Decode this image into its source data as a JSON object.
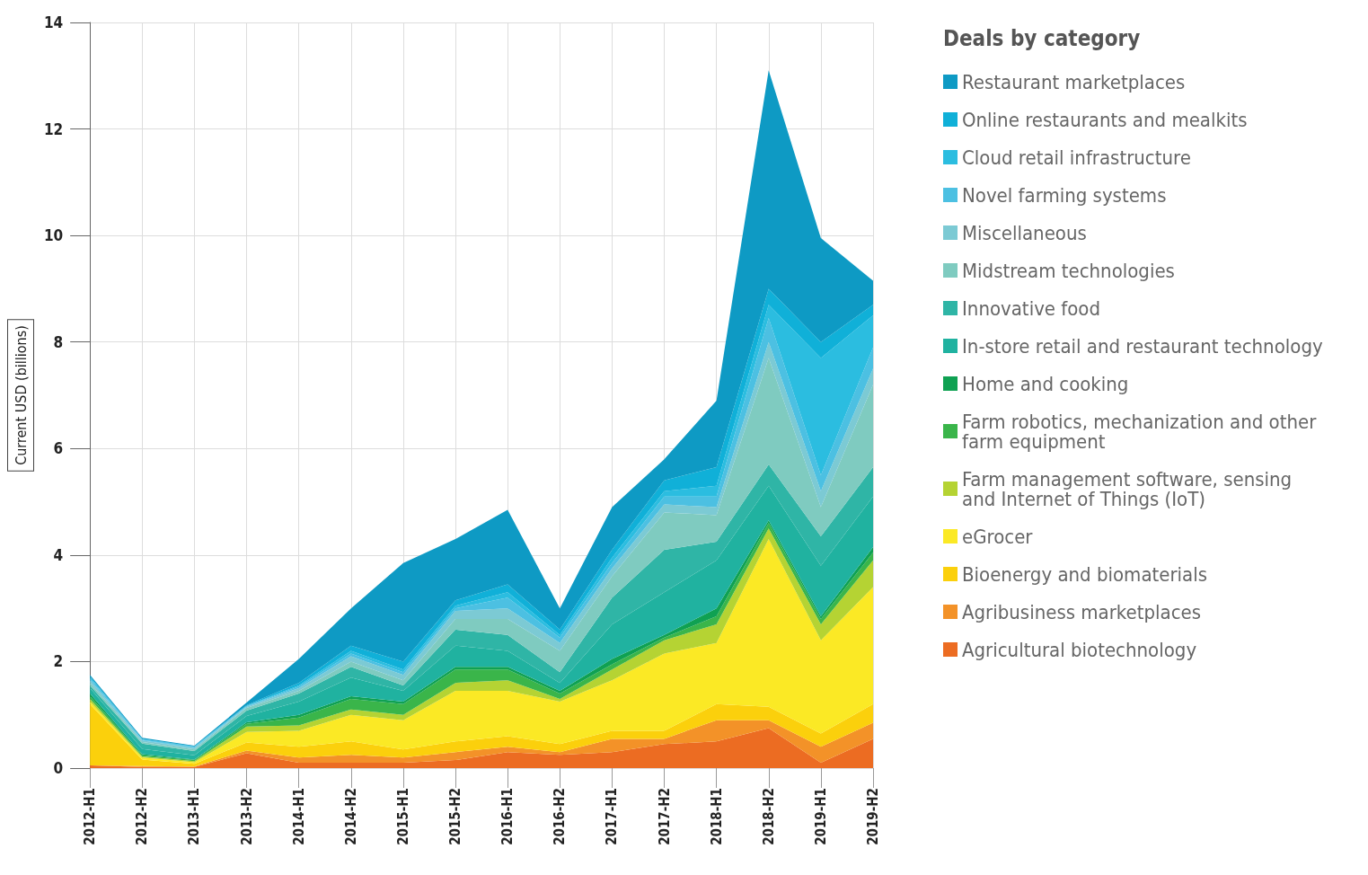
{
  "chart_data": {
    "type": "area",
    "stacked": true,
    "ylabel": "Current USD (billions)",
    "legend_title": "Deals by category",
    "legend": "right",
    "grid": true,
    "categories": [
      "2012-H1",
      "2012-H2",
      "2013-H1",
      "2013-H2",
      "2014-H1",
      "2014-H2",
      "2015-H1",
      "2015-H2",
      "2016-H1",
      "2016-H2",
      "2017-H1",
      "2017-H2",
      "2018-H1",
      "2018-H2",
      "2019-H1",
      "2019-H2"
    ],
    "ylim": [
      0,
      14
    ],
    "yticks": [
      0,
      2,
      4,
      6,
      8,
      10,
      12,
      14
    ],
    "series": [
      {
        "name": "Agricultural biotechnology",
        "color": "#ec6c22",
        "values": [
          0.05,
          0.02,
          0.02,
          0.28,
          0.1,
          0.1,
          0.1,
          0.15,
          0.3,
          0.25,
          0.3,
          0.45,
          0.5,
          0.75,
          0.1,
          0.55
        ]
      },
      {
        "name": "Agribusiness marketplaces",
        "color": "#f39228",
        "values": [
          0,
          0.02,
          0.01,
          0.05,
          0.1,
          0.15,
          0.1,
          0.15,
          0.1,
          0.05,
          0.25,
          0.1,
          0.4,
          0.15,
          0.3,
          0.3
        ]
      },
      {
        "name": "Bioenergy and biomaterials",
        "color": "#fbd00c",
        "values": [
          1.15,
          0.12,
          0.05,
          0.15,
          0.2,
          0.25,
          0.15,
          0.2,
          0.2,
          0.15,
          0.15,
          0.15,
          0.3,
          0.25,
          0.25,
          0.35
        ]
      },
      {
        "name": "eGrocer",
        "color": "#fbe925",
        "values": [
          0.05,
          0.04,
          0.03,
          0.2,
          0.3,
          0.5,
          0.55,
          0.95,
          0.85,
          0.8,
          0.95,
          1.45,
          1.15,
          3.15,
          1.75,
          2.2
        ]
      },
      {
        "name": "Farm management software, sensing and Internet of Things (IoT)",
        "color": "#b5d333",
        "values": [
          0.05,
          0.02,
          0.02,
          0.1,
          0.1,
          0.1,
          0.1,
          0.15,
          0.2,
          0.05,
          0.2,
          0.25,
          0.35,
          0.2,
          0.3,
          0.5
        ]
      },
      {
        "name": "Farm robotics, mechanization and other farm equipment",
        "color": "#3ab54a",
        "values": [
          0.05,
          0.02,
          0.02,
          0.05,
          0.15,
          0.2,
          0.2,
          0.25,
          0.2,
          0.1,
          0.1,
          0.05,
          0.15,
          0.1,
          0.1,
          0.15
        ]
      },
      {
        "name": "Home and cooking",
        "color": "#0fa152",
        "values": [
          0.05,
          0.02,
          0.01,
          0.03,
          0.05,
          0.05,
          0.05,
          0.05,
          0.05,
          0.05,
          0.1,
          0.05,
          0.15,
          0.05,
          0.05,
          0.1
        ]
      },
      {
        "name": "In-store retail and restaurant technology",
        "color": "#20b2a0",
        "values": [
          0.1,
          0.1,
          0.08,
          0.12,
          0.25,
          0.35,
          0.2,
          0.4,
          0.3,
          0.15,
          0.65,
          0.8,
          0.9,
          0.65,
          0.95,
          0.95
        ]
      },
      {
        "name": "Innovative food",
        "color": "#2fb5a6",
        "values": [
          0.05,
          0.1,
          0.08,
          0.1,
          0.15,
          0.2,
          0.1,
          0.3,
          0.3,
          0.2,
          0.5,
          0.8,
          0.35,
          0.4,
          0.55,
          0.55
        ]
      },
      {
        "name": "Midstream technologies",
        "color": "#7fcbc0",
        "values": [
          0.05,
          0.03,
          0.03,
          0.05,
          0.05,
          0.1,
          0.1,
          0.2,
          0.3,
          0.4,
          0.4,
          0.7,
          0.5,
          2.0,
          0.55,
          1.55
        ]
      },
      {
        "name": "Miscellaneous",
        "color": "#7ccad4",
        "values": [
          0.05,
          0.03,
          0.03,
          0.02,
          0.05,
          0.1,
          0.1,
          0.15,
          0.2,
          0.15,
          0.15,
          0.15,
          0.15,
          0.3,
          0.3,
          0.3
        ]
      },
      {
        "name": "Novel farming systems",
        "color": "#4cc0e2",
        "values": [
          0.03,
          0.01,
          0.01,
          0.01,
          0.03,
          0.05,
          0.05,
          0.05,
          0.2,
          0.1,
          0.1,
          0.15,
          0.2,
          0.45,
          0.3,
          0.4
        ]
      },
      {
        "name": "Cloud retail infrastructure",
        "color": "#2bbde0",
        "values": [
          0.02,
          0.01,
          0.01,
          0.01,
          0.02,
          0.05,
          0.05,
          0.05,
          0.1,
          0.05,
          0.1,
          0.1,
          0.2,
          0.25,
          2.2,
          0.6
        ]
      },
      {
        "name": "Online restaurants and mealkits",
        "color": "#10b0d8",
        "values": [
          0.02,
          0.01,
          0.01,
          0.01,
          0.05,
          0.1,
          0.15,
          0.1,
          0.15,
          0.1,
          0.15,
          0.2,
          0.35,
          0.3,
          0.3,
          0.2
        ]
      },
      {
        "name": "Restaurant marketplaces",
        "color": "#0e9ac4",
        "values": [
          0.03,
          0.02,
          0.01,
          0.05,
          0.45,
          0.7,
          1.85,
          1.15,
          1.4,
          0.4,
          0.8,
          0.4,
          1.25,
          4.1,
          1.95,
          0.45
        ]
      }
    ]
  }
}
